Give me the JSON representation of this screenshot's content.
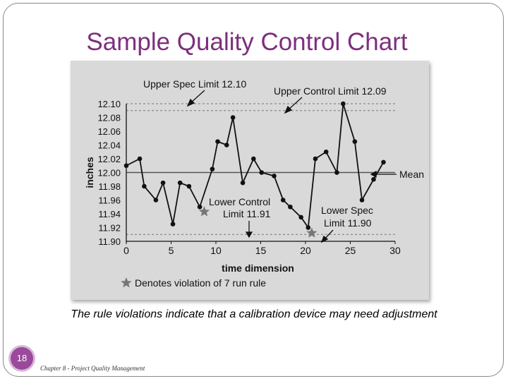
{
  "slide": {
    "title": "Sample Quality Control Chart",
    "caption": "The rule violations indicate that a calibration device may need adjustment",
    "page_number": "18",
    "footer": "Chapter 8 - Project Quality Management"
  },
  "colors": {
    "title": "#7c2f7d",
    "badge": "#9b4a9b",
    "panel": "#d9d9d9",
    "line": "#111111"
  },
  "chart_data": {
    "type": "line",
    "xlabel": "time dimension",
    "ylabel": "inches",
    "xlim": [
      0,
      30
    ],
    "ylim": [
      11.9,
      12.1
    ],
    "xticks": [
      "0",
      "5",
      "10",
      "15",
      "20",
      "25",
      "30"
    ],
    "yticks": [
      "12.10",
      "12.08",
      "12.06",
      "12.04",
      "12.02",
      "12.00",
      "11.98",
      "11.96",
      "11.94",
      "11.92",
      "11.90"
    ],
    "x": [
      0,
      1.5,
      2,
      3.3,
      4.1,
      5.2,
      6,
      7,
      8.2,
      9.6,
      10.2,
      11.2,
      11.9,
      13,
      14.2,
      15.1,
      16.5,
      17.5,
      18.3,
      19.5,
      20.3,
      21.1,
      22.3,
      23.5,
      24.2,
      25.5,
      26.3,
      27.6,
      28.7
    ],
    "y": [
      12.01,
      12.02,
      11.98,
      11.96,
      11.985,
      11.925,
      11.985,
      11.98,
      11.95,
      12.005,
      12.045,
      12.04,
      12.08,
      11.985,
      12.02,
      12.0,
      11.995,
      11.96,
      11.95,
      11.935,
      11.92,
      12.02,
      12.03,
      12.0,
      12.1,
      12.045,
      11.96,
      11.99,
      12.015
    ],
    "reference_lines": [
      {
        "label": "Upper Spec Limit 12.10",
        "value": 12.1
      },
      {
        "label": "Upper Control Limit 12.09",
        "value": 12.09
      },
      {
        "label": "Mean",
        "value": 12.0
      },
      {
        "label": "Lower Control Limit 11.91",
        "value": 11.91
      },
      {
        "label": "Lower Spec Limit 11.90",
        "value": 11.9
      }
    ],
    "annotation_labels": {
      "upper_spec": "Upper Spec Limit 12.10",
      "upper_control": "Upper Control Limit 12.09",
      "mean": "Mean",
      "lower_control_1": "Lower Control",
      "lower_control_2": "Limit 11.91",
      "lower_spec_1": "Lower Spec",
      "lower_spec_2": "Limit 11.90"
    },
    "violations": [
      {
        "x": 8.7,
        "y": 11.943
      },
      {
        "x": 20.7,
        "y": 11.912
      }
    ],
    "legend": {
      "symbol": "star",
      "text": "Denotes violation of 7 run rule"
    },
    "grid": false
  }
}
